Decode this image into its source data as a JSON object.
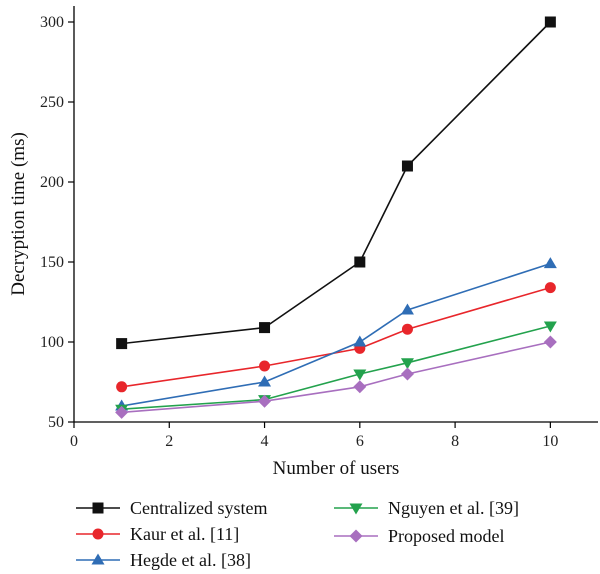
{
  "chart_data": {
    "type": "line",
    "title": "",
    "xlabel": "Number of users",
    "ylabel": "Decryption time (ms)",
    "xlim": [
      0,
      11
    ],
    "ylim": [
      50,
      310
    ],
    "xticks": [
      0,
      2,
      4,
      6,
      8,
      10
    ],
    "yticks": [
      50,
      100,
      150,
      200,
      250,
      300
    ],
    "grid": false,
    "legend_position": "bottom",
    "x": [
      1,
      4,
      6,
      7,
      10
    ],
    "series": [
      {
        "name": "Centralized system",
        "values": [
          99,
          109,
          150,
          210,
          300
        ],
        "color": "#111111",
        "marker": "square"
      },
      {
        "name": "Kaur et al. [11]",
        "values": [
          72,
          85,
          96,
          108,
          134
        ],
        "color": "#e8262b",
        "marker": "circle"
      },
      {
        "name": "Hegde et al. [38]",
        "values": [
          60,
          75,
          100,
          120,
          149
        ],
        "color": "#2f6db5",
        "marker": "triangle-up"
      },
      {
        "name": "Nguyen et al. [39]",
        "values": [
          58,
          64,
          80,
          87,
          110
        ],
        "color": "#23a24d",
        "marker": "triangle-down"
      },
      {
        "name": "Proposed model",
        "values": [
          56,
          63,
          72,
          80,
          100
        ],
        "color": "#a86fbf",
        "marker": "diamond"
      }
    ]
  }
}
